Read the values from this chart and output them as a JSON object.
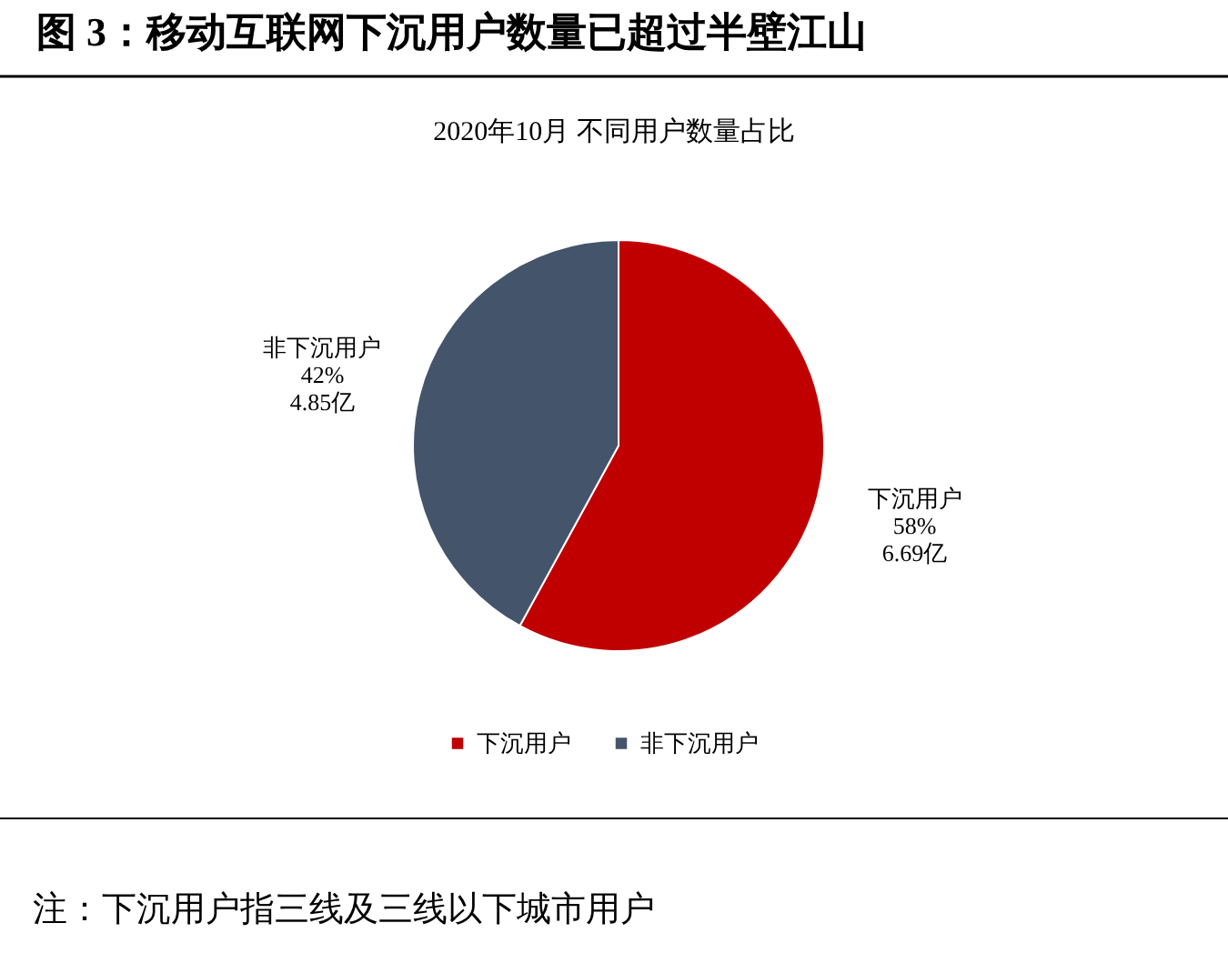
{
  "chart_data": {
    "type": "pie",
    "title": "图 3：移动互联网下沉用户数量已超过半壁江山",
    "subtitle": "2020年10月 不同用户数量占比",
    "categories": [
      "下沉用户",
      "非下沉用户"
    ],
    "values": [
      6.69,
      4.85
    ],
    "colors": [
      "#c00000",
      "#44546a"
    ],
    "value_labels": [
      "58%\n6.69亿",
      "42%\n4.85亿"
    ],
    "legend": "bottom",
    "annotations": [
      "注：下沉用户指三线及三线以下城市用户"
    ]
  }
}
